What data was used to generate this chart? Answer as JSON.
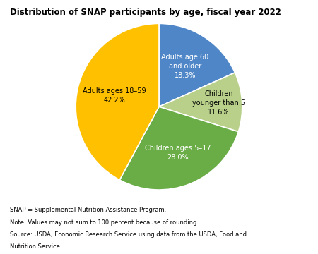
{
  "title": "Distribution of SNAP participants by age, fiscal year 2022",
  "slices": [
    {
      "label": "Adults age 60\nand older\n18.3%",
      "value": 18.3,
      "color": "#4E86C8",
      "text_color": "white",
      "label_r": 0.58
    },
    {
      "label": "Children\nyounger than 5\n11.6%",
      "value": 11.6,
      "color": "#B8D08A",
      "text_color": "black",
      "label_r": 0.72
    },
    {
      "label": "Children ages 5–17\n28.0%",
      "value": 28.0,
      "color": "#6AAD47",
      "text_color": "white",
      "label_r": 0.6
    },
    {
      "label": "Adults ages 18–59\n42.2%",
      "value": 42.2,
      "color": "#FFC000",
      "text_color": "black",
      "label_r": 0.55
    }
  ],
  "startangle": 90,
  "counterclock": false,
  "background_color": "#FFFFFF",
  "title_fontsize": 8.5,
  "label_fontsize": 7.0,
  "footnote_fontsize": 6.0,
  "footnotes": [
    "SNAP = Supplemental Nutrition Assistance Program.",
    "Note: Values may not sum to 100 percent because of rounding.",
    "Source: USDA, Economic Research Service using data from the USDA, Food and",
    "Nutrition Service."
  ]
}
